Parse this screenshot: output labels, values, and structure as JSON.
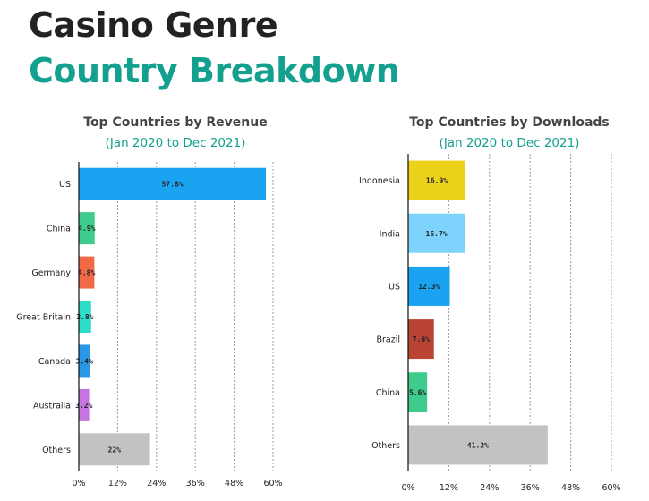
{
  "header": {
    "line1": "Casino Genre",
    "line2": "Country Breakdown"
  },
  "colors": {
    "title_dark": "#222222",
    "accent_teal": "#14a08f"
  },
  "chart_data": [
    {
      "type": "bar",
      "orientation": "horizontal",
      "title": "Top Countries by Revenue",
      "subtitle": "(Jan 2020 to Dec 2021)",
      "categories": [
        "US",
        "China",
        "Germany",
        "Great Britain",
        "Canada",
        "Australia",
        "Others"
      ],
      "values": [
        57.8,
        4.9,
        4.8,
        3.8,
        3.4,
        3.2,
        22
      ],
      "value_labels": [
        "57.8%",
        "4.9%",
        "4.8%",
        "3.8%",
        "3.4%",
        "3.2%",
        "22%"
      ],
      "colors": [
        "#1aa3f0",
        "#3ecb8b",
        "#f26a45",
        "#2ddcc9",
        "#2a96e6",
        "#c574e0",
        "#c2c2c2"
      ],
      "xlim": [
        0,
        60
      ],
      "xticks": [
        "0%",
        "12%",
        "24%",
        "36%",
        "48%",
        "60%"
      ],
      "grid": true
    },
    {
      "type": "bar",
      "orientation": "horizontal",
      "title": "Top Countries by Downloads",
      "subtitle": "(Jan 2020 to Dec 2021)",
      "categories": [
        "Indonesia",
        "India",
        "US",
        "Brazil",
        "China",
        "Others"
      ],
      "values": [
        16.9,
        16.7,
        12.3,
        7.6,
        5.6,
        41.2
      ],
      "value_labels": [
        "16.9%",
        "16.7%",
        "12.3%",
        "7.6%",
        "5.6%",
        "41.2%"
      ],
      "colors": [
        "#ecd21a",
        "#7dd3fb",
        "#1aa3f0",
        "#b94434",
        "#3ecb8b",
        "#c2c2c2"
      ],
      "xlim": [
        0,
        60
      ],
      "xticks": [
        "0%",
        "12%",
        "24%",
        "36%",
        "48%",
        "60%"
      ],
      "grid": true
    }
  ]
}
